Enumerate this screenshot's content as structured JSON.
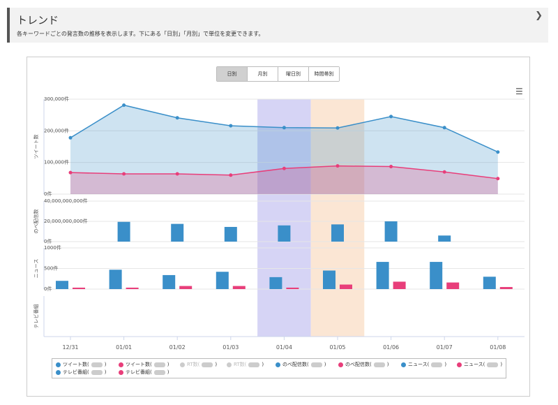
{
  "header": {
    "title": "トレンド",
    "description": "各キーワードごとの発言数の推移を表示します。下にある「日別」「月別」で単位を変更できます。",
    "collapse_icon": "chevron-down-icon"
  },
  "toolbar": {
    "buttons": [
      "日別",
      "月別",
      "曜日別",
      "時間帯別"
    ],
    "selected": "日別",
    "menu_icon": "hamburger-icon"
  },
  "colors": {
    "blue": "#3a8fc9",
    "pink": "#e83e7a",
    "band1": "#d6d4f5",
    "band2": "#fbe6d4"
  },
  "chart_data": {
    "type": "line+bar",
    "categories": [
      "12/31",
      "01/01",
      "01/02",
      "01/03",
      "01/04",
      "01/05",
      "01/06",
      "01/07",
      "01/08"
    ],
    "highlight_bands": [
      "01/04",
      "01/05"
    ],
    "panels": [
      {
        "ylabel": "ツイート数",
        "type": "area",
        "yticks": [
          "0件",
          "100,000件",
          "200,000件",
          "300,000件"
        ],
        "ylim": [
          0,
          300000
        ],
        "series": [
          {
            "name": "ツイート数",
            "color": "blue",
            "values": [
              178000,
              281000,
              241000,
              216000,
              210000,
              209000,
              245000,
              210000,
              133000
            ]
          },
          {
            "name": "ツイート数",
            "color": "pink",
            "values": [
              68000,
              64000,
              64000,
              60000,
              81000,
              89000,
              87000,
              70000,
              49000
            ]
          }
        ]
      },
      {
        "ylabel": "のべ配信数",
        "type": "bar",
        "yticks": [
          "0件",
          "20,000,000,000件",
          "40,000,000,000件"
        ],
        "ylim": [
          0,
          40000000000
        ],
        "series": [
          {
            "name": "のべ配信数",
            "color": "blue",
            "values": [
              0,
              19500000000,
              17500000000,
              14500000000,
              16000000000,
              17000000000,
              20000000000,
              6000000000,
              0
            ]
          }
        ]
      },
      {
        "ylabel": "ニュース",
        "type": "bar",
        "yticks": [
          "0件",
          "500件",
          "1000件"
        ],
        "ylim": [
          0,
          1000
        ],
        "series": [
          {
            "name": "ニュース",
            "color": "blue",
            "values": [
              200,
              470,
              340,
              420,
              290,
              450,
              660,
              660,
              300
            ]
          },
          {
            "name": "ニュース",
            "color": "pink",
            "values": [
              35,
              35,
              75,
              75,
              35,
              110,
              180,
              160,
              50
            ]
          }
        ]
      },
      {
        "ylabel": "テレビ番組",
        "type": "bar",
        "yticks": [],
        "ylim": [
          0,
          1
        ],
        "series": []
      }
    ],
    "legend": [
      {
        "label": "ツイート数(",
        "color": "blue",
        "active": true
      },
      {
        "label": "ツイート数(",
        "color": "pink",
        "active": true
      },
      {
        "label": "RT数(",
        "color": "#ccc",
        "active": false
      },
      {
        "label": "RT数(",
        "color": "#ccc",
        "active": false
      },
      {
        "label": "のべ配信数(",
        "color": "blue",
        "active": true
      },
      {
        "label": "のべ配信数(",
        "color": "pink",
        "active": true
      },
      {
        "label": "ニュース(",
        "color": "blue",
        "active": true
      },
      {
        "label": "ニュース(",
        "color": "pink",
        "active": true
      },
      {
        "label": "テレビ番組(",
        "color": "blue",
        "active": true
      },
      {
        "label": "テレビ番組(",
        "color": "pink",
        "active": true
      }
    ]
  }
}
